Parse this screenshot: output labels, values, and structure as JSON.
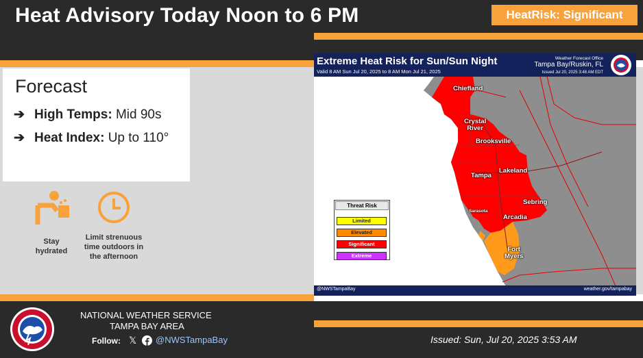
{
  "header": {
    "title": "Heat Advisory Today Noon to 6 PM",
    "risk_badge": "HeatRisk: Significant"
  },
  "forecast": {
    "title": "Forecast",
    "arrow": "➔",
    "items": [
      {
        "label": "High Temps:",
        "value": "Mid 90s"
      },
      {
        "label": "Heat Index:",
        "value": "Up to 110°"
      }
    ]
  },
  "tips": [
    {
      "icon": "drink-water-icon",
      "text": "Stay hydrated"
    },
    {
      "icon": "clock-icon",
      "text": "Limit strenuous time outdoors in the afternoon"
    }
  ],
  "map": {
    "title": "Extreme Heat Risk for Sun/Sun Night",
    "valid": "Valid 8 AM Sun Jul 20, 2025 to 8 AM Mon Jul 21, 2025",
    "office_line1": "Weather Forecast Office",
    "office_line2": "Tampa Bay/Ruskin, FL",
    "office_line3": "Issued Jul 20, 2025 3:48 AM EDT",
    "social": "@NWSTampaBay",
    "url": "weather.gov/tampabay",
    "cities": {
      "chiefland": "Chiefland",
      "crystal_river": "Crystal\nRiver",
      "brooksville": "Brooksville",
      "tampa": "Tampa",
      "lakeland": "Lakeland",
      "sebring": "Sebring",
      "arcadia": "Arcadia",
      "sarasota": "Sarasota",
      "fort_myers": "Fort\nMyers"
    },
    "legend": {
      "title": "Threat Risk",
      "levels": [
        {
          "label": "Limited",
          "color": "#ffff00"
        },
        {
          "label": "Elevated",
          "color": "#ff8c00"
        },
        {
          "label": "Significant",
          "color": "#ff0000"
        },
        {
          "label": "Extreme",
          "color": "#cc33ff"
        }
      ]
    }
  },
  "footer": {
    "org_line1": "NATIONAL WEATHER SERVICE",
    "org_line2": "TAMPA BAY AREA",
    "follow_label": "Follow:",
    "handle": "@NWSTampaBay",
    "issued": "Issued: Sun, Jul 20, 2025 3:53 AM"
  },
  "colors": {
    "accent": "#f9a13a",
    "dark": "#2a2a2a",
    "significant": "#ff0000",
    "elevated": "#ff8c00",
    "map_header": "#13225b"
  }
}
